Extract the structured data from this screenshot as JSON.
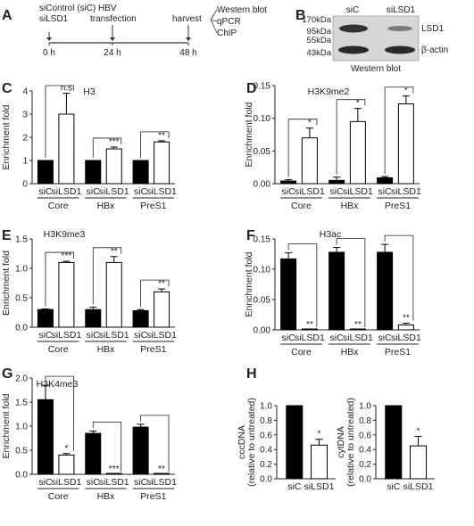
{
  "panel_A": {
    "letter": "A",
    "treatment": [
      "siControl (siC)",
      "siLSD1"
    ],
    "event_hbv": [
      "HBV",
      "transfection"
    ],
    "event_harvest": "harvest",
    "assays": [
      "Western blot",
      "qPCR",
      "ChIP"
    ],
    "times": [
      "0 h",
      "24 h",
      "48 h"
    ]
  },
  "panel_B": {
    "letter": "B",
    "markers": [
      "170kDa",
      "95kDa",
      "55kDa",
      "43kDa"
    ],
    "lanes": [
      "siC",
      "siLSD1"
    ],
    "band_labels": [
      "LSD1",
      "β-actin"
    ],
    "caption": "Western blot"
  },
  "chart_data": [
    {
      "panel": "C",
      "type": "bar",
      "title": "H3",
      "ylabel": "Enrichment fold",
      "ylim": [
        0,
        4
      ],
      "yticks": [
        "0",
        "1",
        "2",
        "3",
        "4"
      ],
      "categories": [
        "siC",
        "siLSD1",
        "siC",
        "siLSD1",
        "siC",
        "siLSD1"
      ],
      "groups": [
        "Core",
        "HBx",
        "PreS1"
      ],
      "values": [
        1.0,
        3.0,
        1.0,
        1.5,
        1.0,
        1.8
      ],
      "errors": [
        0,
        0.9,
        0,
        0.08,
        0,
        0.05
      ],
      "significance": [
        "n.s",
        "***",
        "**"
      ]
    },
    {
      "panel": "D",
      "type": "bar",
      "title": "H3K9me2",
      "ylabel": "Enrichment fold",
      "ylim": [
        0,
        0.15
      ],
      "yticks": [
        "0.00",
        "0.05",
        "0.10",
        "0.15"
      ],
      "categories": [
        "siC",
        "siLSD1",
        "siC",
        "siLSD1",
        "siC",
        "siLSD1"
      ],
      "groups": [
        "Core",
        "HBx",
        "PreS1"
      ],
      "values": [
        0.004,
        0.07,
        0.005,
        0.095,
        0.009,
        0.122
      ],
      "errors": [
        0.002,
        0.015,
        0.005,
        0.02,
        0.002,
        0.012
      ],
      "significance": [
        "*",
        "*",
        "*"
      ]
    },
    {
      "panel": "E",
      "type": "bar",
      "title": "H3K9me3",
      "ylabel": "Enrichment fold",
      "ylim": [
        0,
        1.5
      ],
      "yticks": [
        "0.0",
        "0.5",
        "1.0",
        "1.5"
      ],
      "categories": [
        "siC",
        "siLSD1",
        "siC",
        "siLSD1",
        "siC",
        "siLSD1"
      ],
      "groups": [
        "Core",
        "HBx",
        "PreS1"
      ],
      "values": [
        0.3,
        1.1,
        0.3,
        1.1,
        0.28,
        0.6
      ],
      "errors": [
        0.01,
        0.02,
        0.04,
        0.1,
        0.02,
        0.05
      ],
      "significance": [
        "***",
        "**",
        "**"
      ]
    },
    {
      "panel": "F",
      "type": "bar",
      "title": "H3ac",
      "ylabel": "Enrichment fold",
      "ylim": [
        0,
        0.15
      ],
      "yticks": [
        "0.00",
        "0.05",
        "0.10",
        "0.15"
      ],
      "categories": [
        "siC",
        "siLSD1",
        "siC",
        "siLSD1",
        "siC",
        "siLSD1"
      ],
      "groups": [
        "Core",
        "HBx",
        "PreS1"
      ],
      "values": [
        0.117,
        0.0,
        0.128,
        0.0,
        0.128,
        0.008
      ],
      "errors": [
        0.01,
        0,
        0.008,
        0,
        0.013,
        0.003
      ],
      "significance": [
        "**",
        "**",
        "**"
      ]
    },
    {
      "panel": "G",
      "type": "bar",
      "title": "H3K4me3",
      "ylabel": "Enrichment fold",
      "ylim": [
        0,
        2.0
      ],
      "yticks": [
        "0.0",
        "0.5",
        "1.0",
        "1.5",
        "2.0"
      ],
      "categories": [
        "siC",
        "siLSD1",
        "siC",
        "siLSD1",
        "siC",
        "siLSD1"
      ],
      "groups": [
        "Core",
        "HBx",
        "PreS1"
      ],
      "values": [
        1.55,
        0.4,
        0.85,
        0.0,
        0.98,
        0.0
      ],
      "errors": [
        0.3,
        0.03,
        0.05,
        0,
        0.06,
        0
      ],
      "significance": [
        "*",
        "***",
        "**"
      ]
    },
    {
      "panel": "H",
      "type": "bar",
      "ylabel": [
        "cccDNA",
        "(relative to untreated)"
      ],
      "ylim": [
        0,
        1.0
      ],
      "yticks": [
        "0.0",
        "0.2",
        "0.4",
        "0.6",
        "0.8",
        "1.0"
      ],
      "categories": [
        "siC",
        "siLSD1"
      ],
      "values": [
        1.0,
        0.46
      ],
      "errors": [
        0,
        0.08
      ],
      "significance": [
        "*"
      ]
    },
    {
      "panel": "H2",
      "type": "bar",
      "ylabel": [
        "cytDNA",
        "(relative to untreated)"
      ],
      "ylim": [
        0,
        1.0
      ],
      "yticks": [
        "0.0",
        "0.2",
        "0.4",
        "0.6",
        "0.8",
        "1.0"
      ],
      "categories": [
        "siC",
        "siLSD1"
      ],
      "values": [
        1.0,
        0.45
      ],
      "errors": [
        0,
        0.13
      ],
      "significance": [
        "*"
      ]
    }
  ],
  "panel_letters": [
    "C",
    "D",
    "E",
    "F",
    "G",
    "H"
  ]
}
